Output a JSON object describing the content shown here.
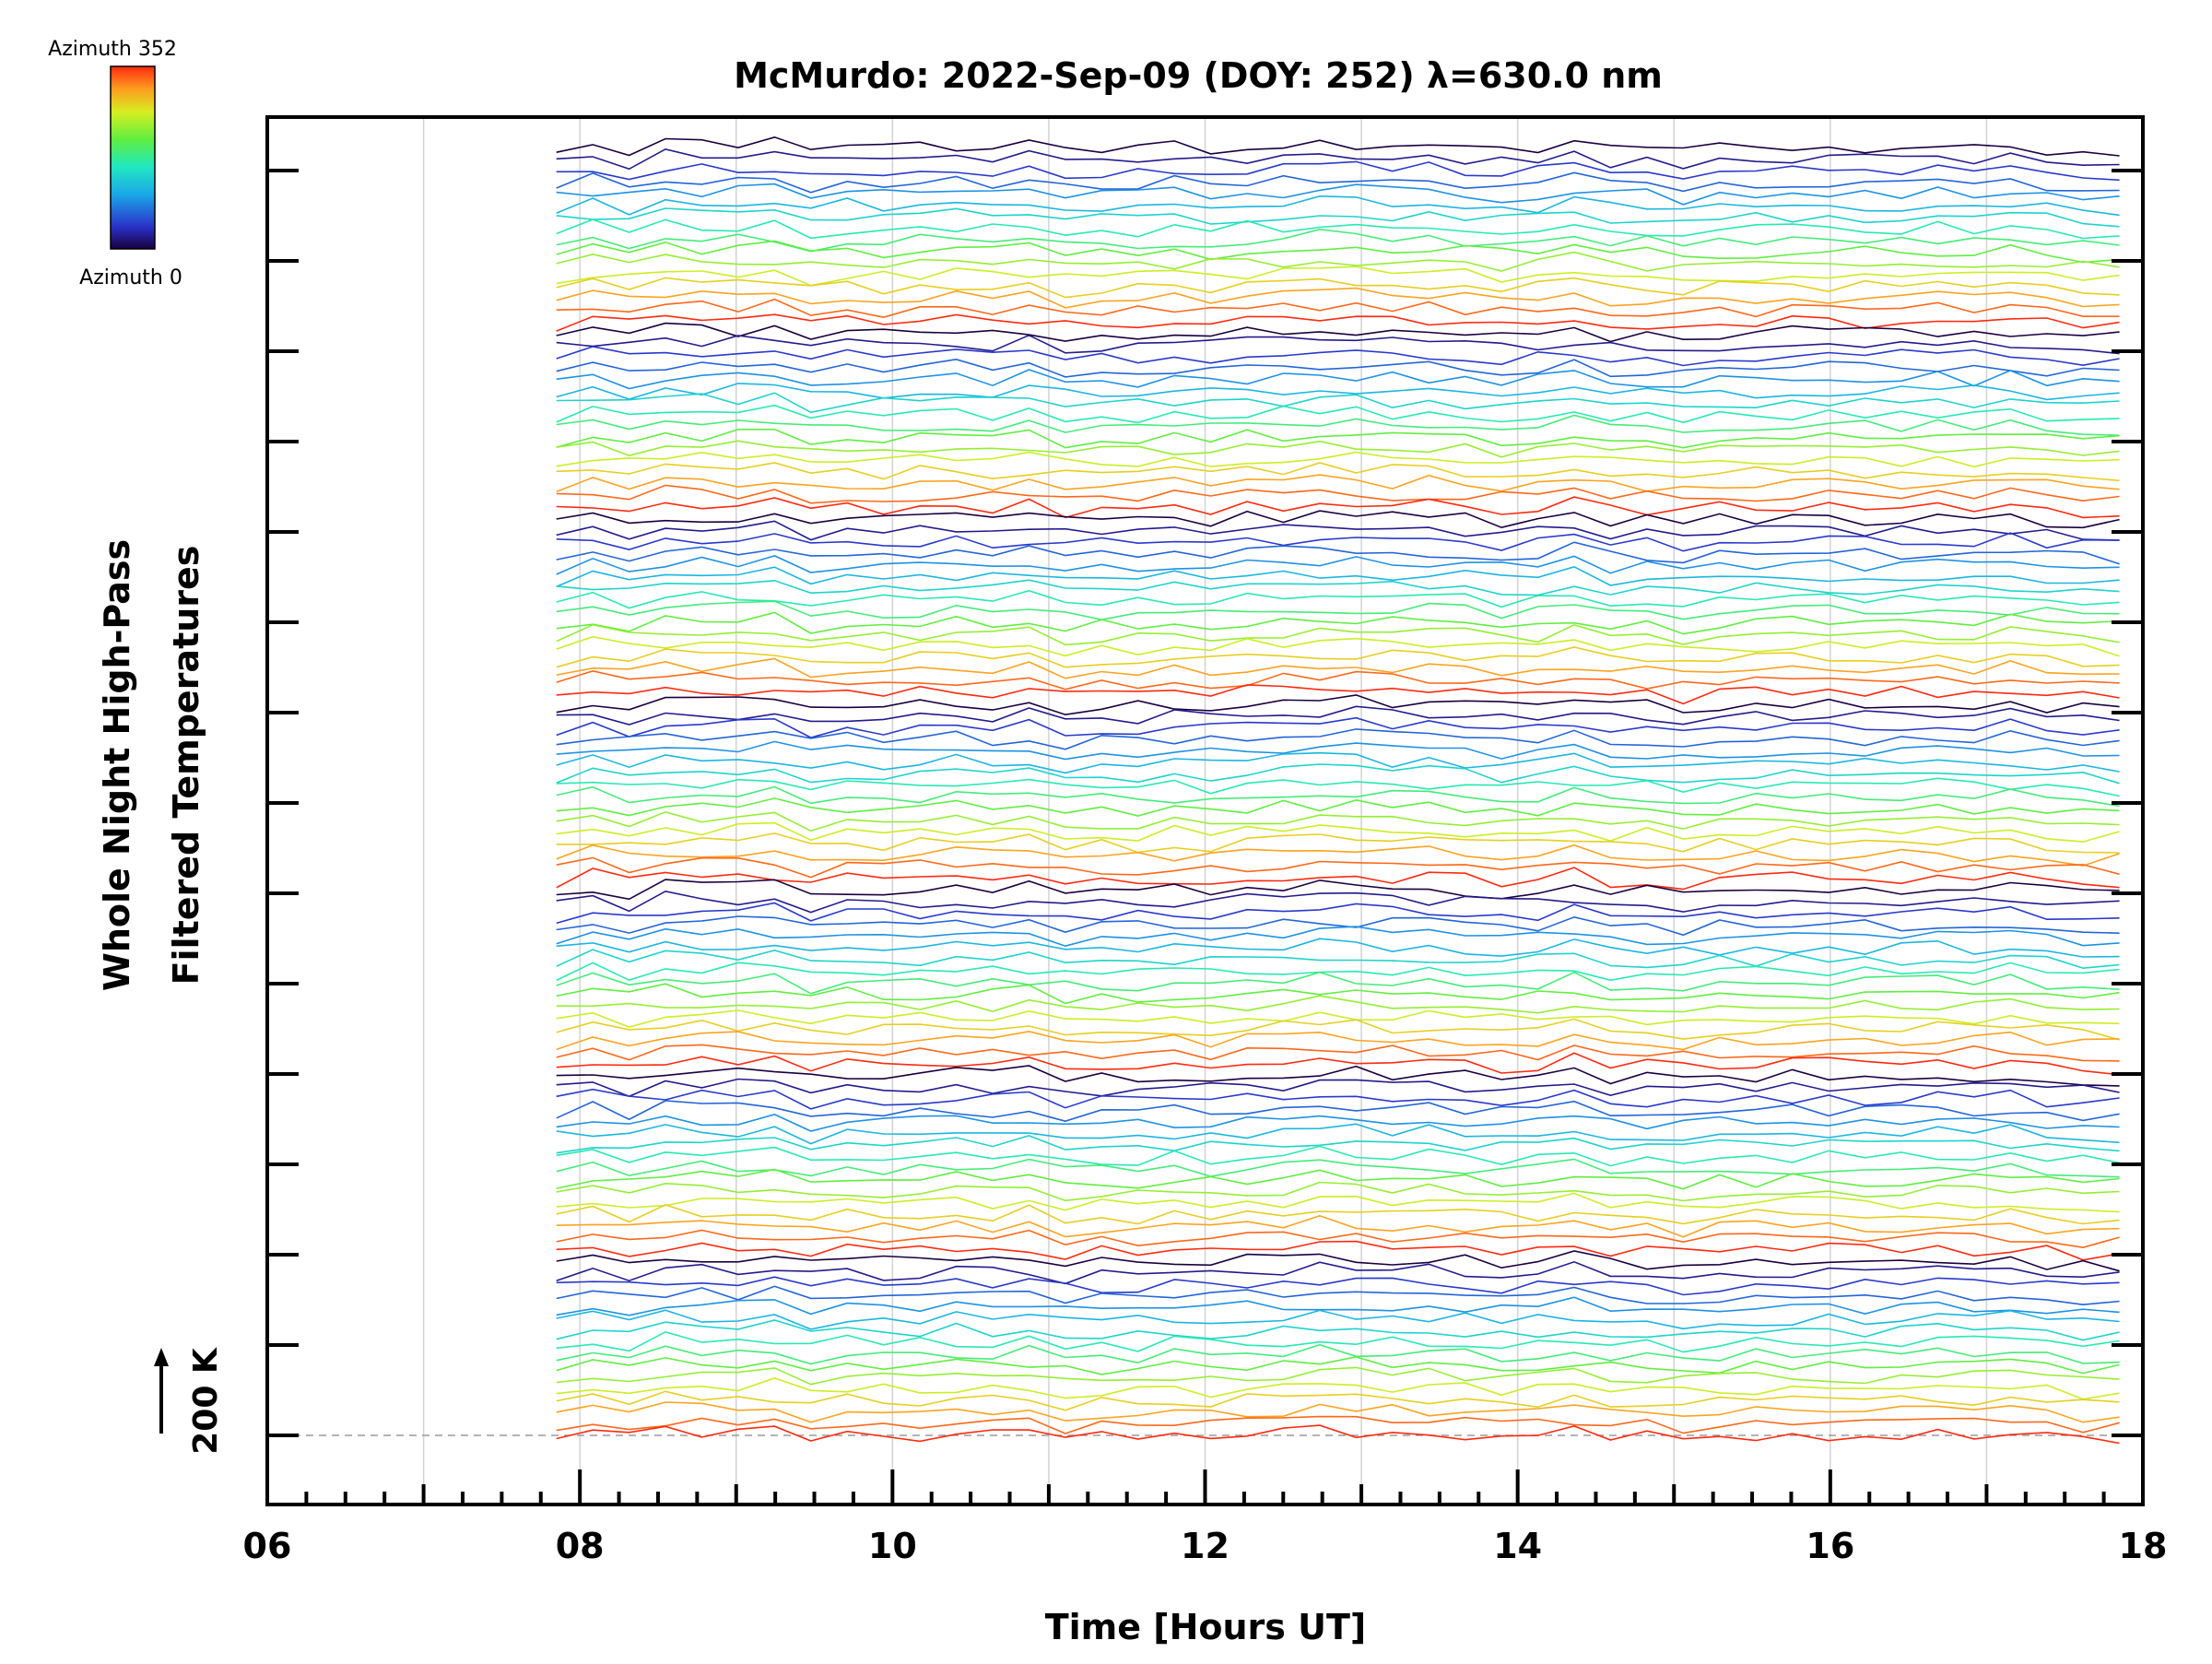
{
  "chart_data": {
    "type": "line",
    "title": "McMurdo: 2022-Sep-09 (DOY: 252) λ=630.0 nm",
    "xlabel": "Time [Hours UT]",
    "ylabel_line1": "Whole Night High-Pass",
    "ylabel_line2": "Filtered Temperatures",
    "xlim": [
      6,
      18
    ],
    "x_ticks": [
      "06",
      "08",
      "10",
      "12",
      "14",
      "16",
      "18"
    ],
    "x_data_range": [
      7.85,
      17.85
    ],
    "scale_bar_label": "200 K",
    "colorbar": {
      "top_label": "Azimuth  352",
      "bottom_label": "Azimuth  0",
      "colormap": "rainbow"
    },
    "trace_groups": 7,
    "traces_per_group": 16,
    "grid": "vertical",
    "legend": "colorbar top-left"
  }
}
